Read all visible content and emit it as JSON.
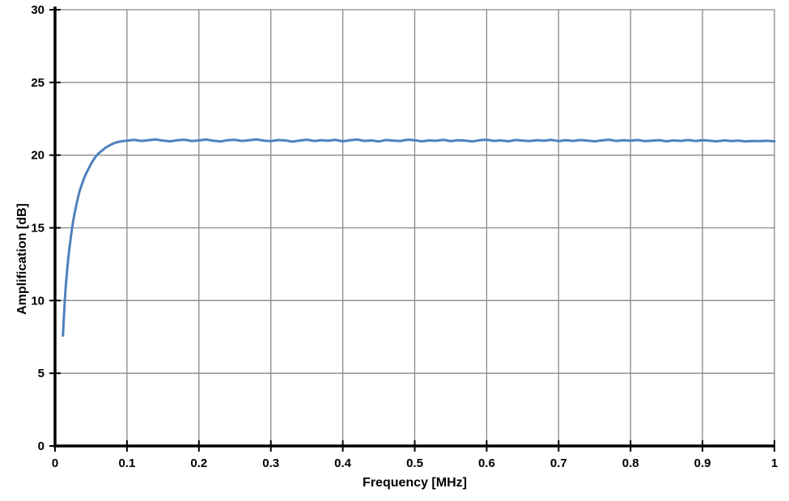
{
  "figure": {
    "background": "#ffffff"
  },
  "chart_data": {
    "type": "line",
    "title": "",
    "xlabel": "Frequency [MHz]",
    "ylabel": "Amplification [dB]",
    "xlim": [
      0,
      1
    ],
    "ylim": [
      0,
      30
    ],
    "grid": true,
    "legend": "none",
    "line_color": "#4F81BD",
    "gridline_color": "#898989",
    "axis_color": "#000000",
    "x_ticks": {
      "values": [
        0,
        0.1,
        0.2,
        0.3,
        0.4,
        0.5,
        0.6,
        0.7,
        0.8,
        0.9,
        1
      ],
      "labels": [
        "0",
        "0.1",
        "0.2",
        "0.3",
        "0.4",
        "0.5",
        "0.6",
        "0.7",
        "0.8",
        "0.9",
        "1"
      ]
    },
    "y_ticks": {
      "values": [
        0,
        5,
        10,
        15,
        20,
        25,
        30
      ],
      "labels": [
        "0",
        "5",
        "10",
        "15",
        "20",
        "25",
        "30"
      ]
    },
    "series": [
      {
        "name": "Amplification",
        "x": [
          0.011,
          0.012,
          0.013,
          0.014,
          0.015,
          0.016,
          0.018,
          0.02,
          0.022,
          0.025,
          0.028,
          0.031,
          0.034,
          0.038,
          0.042,
          0.046,
          0.05,
          0.055,
          0.06,
          0.065,
          0.07,
          0.075,
          0.08,
          0.085,
          0.09,
          0.095,
          0.1,
          0.11,
          0.12,
          0.13,
          0.14,
          0.15,
          0.16,
          0.17,
          0.18,
          0.19,
          0.2,
          0.21,
          0.22,
          0.23,
          0.24,
          0.25,
          0.26,
          0.27,
          0.28,
          0.29,
          0.3,
          0.31,
          0.32,
          0.33,
          0.34,
          0.35,
          0.36,
          0.37,
          0.38,
          0.39,
          0.4,
          0.41,
          0.42,
          0.43,
          0.44,
          0.45,
          0.46,
          0.47,
          0.48,
          0.49,
          0.5,
          0.51,
          0.52,
          0.53,
          0.54,
          0.55,
          0.56,
          0.57,
          0.58,
          0.59,
          0.6,
          0.61,
          0.62,
          0.63,
          0.64,
          0.65,
          0.66,
          0.67,
          0.68,
          0.69,
          0.7,
          0.71,
          0.72,
          0.73,
          0.74,
          0.75,
          0.76,
          0.77,
          0.78,
          0.79,
          0.8,
          0.81,
          0.82,
          0.83,
          0.84,
          0.85,
          0.86,
          0.87,
          0.88,
          0.89,
          0.9,
          0.91,
          0.92,
          0.93,
          0.94,
          0.95,
          0.96,
          0.97,
          0.98,
          0.99,
          1.0
        ],
        "y": [
          7.6,
          8.6,
          9.5,
          10.3,
          11.0,
          11.6,
          12.7,
          13.6,
          14.4,
          15.4,
          16.2,
          16.9,
          17.5,
          18.1,
          18.6,
          19.0,
          19.4,
          19.8,
          20.1,
          20.3,
          20.5,
          20.65,
          20.78,
          20.87,
          20.93,
          20.97,
          21.0,
          21.05,
          20.98,
          21.03,
          21.08,
          21.0,
          20.95,
          21.02,
          21.06,
          20.97,
          21.01,
          21.07,
          20.99,
          20.94,
          21.03,
          21.05,
          20.98,
          21.02,
          21.08,
          21.0,
          20.96,
          21.04,
          21.01,
          20.93,
          21.0,
          21.06,
          20.97,
          21.03,
          20.99,
          21.05,
          20.95,
          21.02,
          21.07,
          20.98,
          21.01,
          20.94,
          21.04,
          21.0,
          20.97,
          21.06,
          21.02,
          20.95,
          21.01,
          20.99,
          21.05,
          20.96,
          21.03,
          21.0,
          20.94,
          21.02,
          21.06,
          20.98,
          21.01,
          20.95,
          21.04,
          21.0,
          20.97,
          21.03,
          20.99,
          21.05,
          20.96,
          21.02,
          20.98,
          21.04,
          21.0,
          20.95,
          21.01,
          21.06,
          20.97,
          21.02,
          20.99,
          21.04,
          20.96,
          21.0,
          21.03,
          20.95,
          21.01,
          20.98,
          21.04,
          20.97,
          21.02,
          20.99,
          20.95,
          21.01,
          20.97,
          21.0,
          20.94,
          20.98,
          20.96,
          20.99,
          20.95
        ]
      }
    ]
  }
}
